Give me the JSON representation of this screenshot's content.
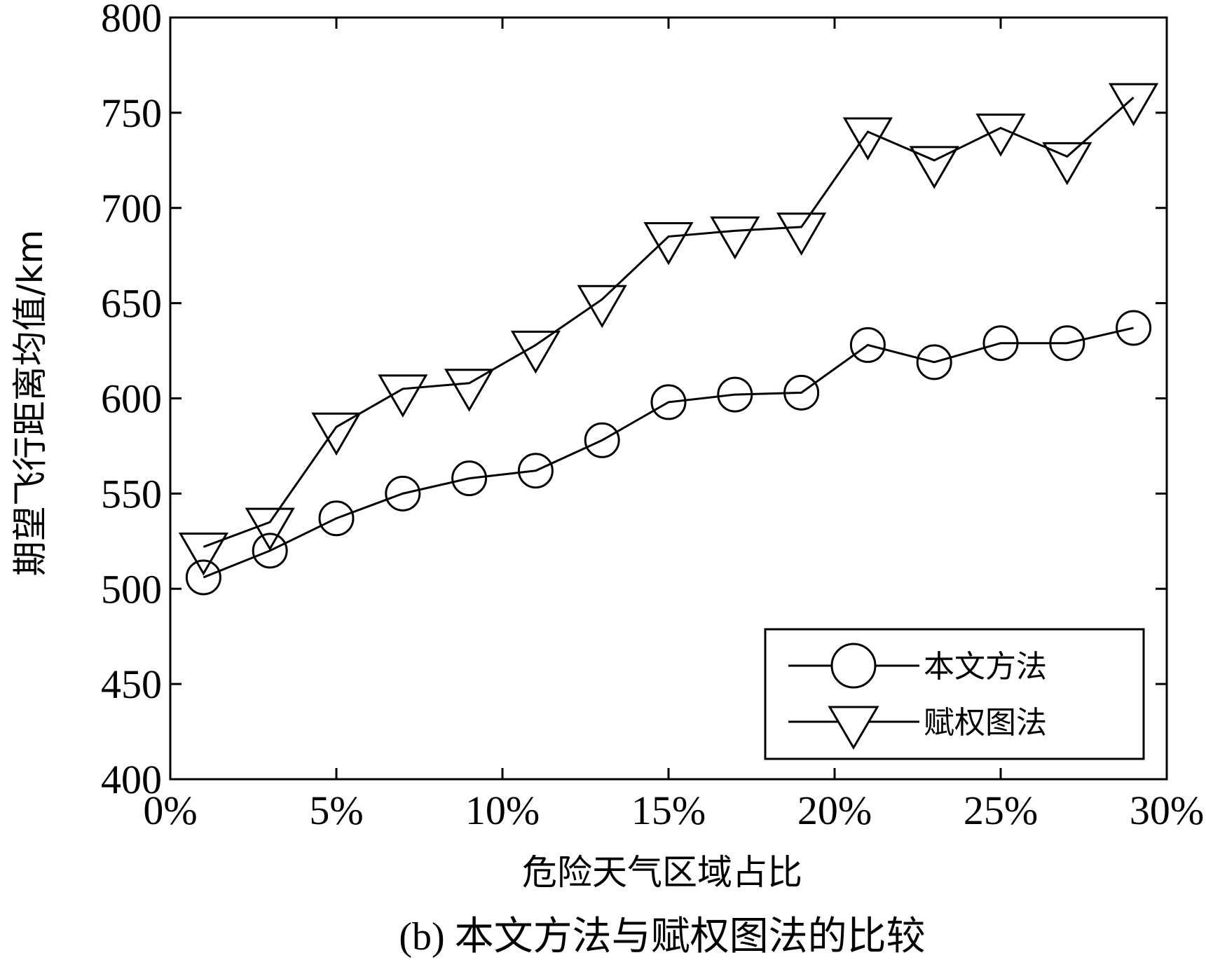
{
  "chart_data": {
    "type": "line",
    "caption": "(b) 本文方法与赋权图法的比较",
    "xlabel": "危险天气区域占比",
    "ylabel": "期望飞行距离均值/km",
    "xlim": [
      0,
      30
    ],
    "ylim": [
      400,
      800
    ],
    "x_ticks": [
      0,
      5,
      10,
      15,
      20,
      25,
      30
    ],
    "x_tick_labels": [
      "0%",
      "5%",
      "10%",
      "15%",
      "20%",
      "25%",
      "30%"
    ],
    "y_ticks": [
      400,
      450,
      500,
      550,
      600,
      650,
      700,
      750,
      800
    ],
    "y_tick_labels": [
      "400",
      "450",
      "500",
      "550",
      "600",
      "650",
      "700",
      "750",
      "800"
    ],
    "x": [
      1,
      3,
      5,
      7,
      9,
      11,
      13,
      15,
      17,
      19,
      21,
      23,
      25,
      27,
      29
    ],
    "series": [
      {
        "name": "本文方法",
        "marker": "circle",
        "values": [
          506,
          520,
          537,
          550,
          558,
          562,
          578,
          598,
          602,
          603,
          628,
          619,
          629,
          629,
          637
        ]
      },
      {
        "name": "赋权图法",
        "marker": "triangle-down",
        "values": [
          522,
          535,
          585,
          605,
          608,
          628,
          652,
          685,
          688,
          690,
          740,
          725,
          742,
          727,
          758
        ]
      }
    ],
    "legend_position": "bottom-right",
    "grid": false,
    "colors": {
      "line": "#000000",
      "marker_fill": "#ffffff",
      "background": "#ffffff"
    }
  }
}
